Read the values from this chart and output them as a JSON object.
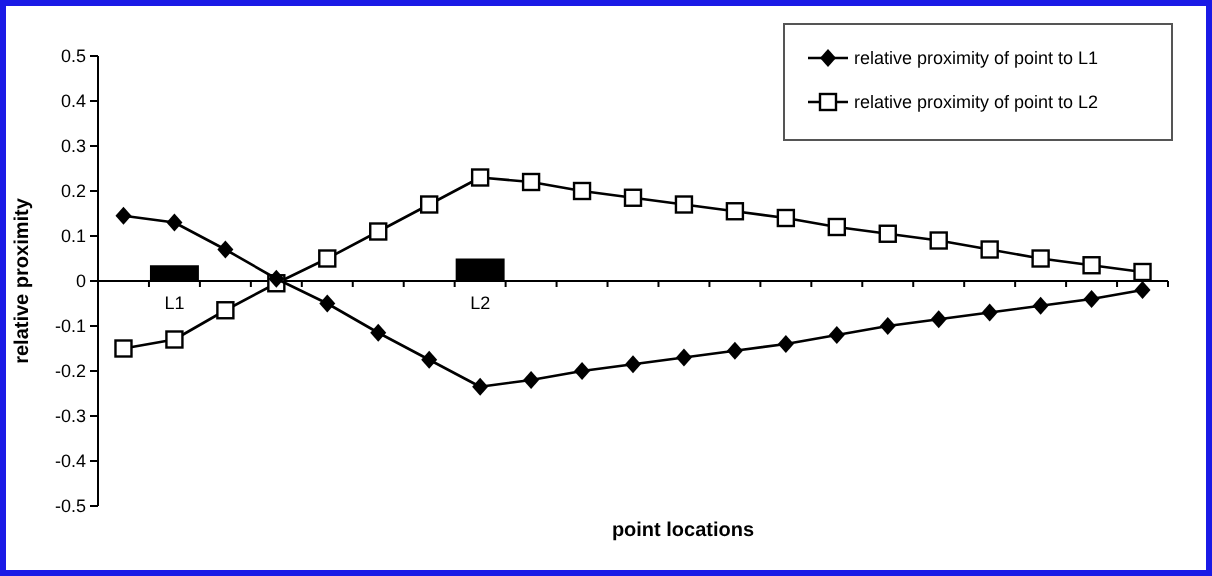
{
  "chart_data": {
    "type": "line",
    "xlabel": "point locations",
    "ylabel": "relative proximity",
    "categories": [
      null,
      "L1",
      null,
      null,
      null,
      null,
      null,
      "L2",
      null,
      null,
      null,
      null,
      null,
      null,
      null,
      null,
      null,
      null,
      null,
      null,
      null
    ],
    "series": [
      {
        "name": "relative proximity of point to L1",
        "color": "#000000",
        "marker": "diamond",
        "values": [
          0.145,
          0.13,
          0.07,
          0.005,
          -0.05,
          -0.115,
          -0.175,
          -0.235,
          -0.22,
          -0.2,
          -0.185,
          -0.17,
          -0.155,
          -0.14,
          -0.12,
          -0.1,
          -0.085,
          -0.07,
          -0.055,
          -0.04,
          -0.02
        ]
      },
      {
        "name": "relative proximity of point to L2",
        "color": "#000000",
        "marker": "square",
        "values": [
          -0.15,
          -0.13,
          -0.065,
          -0.005,
          0.05,
          0.11,
          0.17,
          0.23,
          0.22,
          0.2,
          0.185,
          0.17,
          0.155,
          0.14,
          0.12,
          0.105,
          0.09,
          0.07,
          0.05,
          0.035,
          0.02
        ]
      },
      {
        "type": "bar",
        "color": "#000000",
        "values": [
          null,
          0.035,
          null,
          null,
          null,
          null,
          null,
          0.05,
          null,
          null,
          null,
          null,
          null,
          null,
          null,
          null,
          null,
          null,
          null,
          null,
          null
        ]
      }
    ],
    "ylim": [
      -0.5,
      0.5
    ],
    "yticks": [
      -0.5,
      -0.4,
      -0.3,
      -0.2,
      -0.1,
      0,
      0.1,
      0.2,
      0.3,
      0.4,
      0.5
    ],
    "grid": false,
    "legend": "top right",
    "line_style": "solid"
  }
}
